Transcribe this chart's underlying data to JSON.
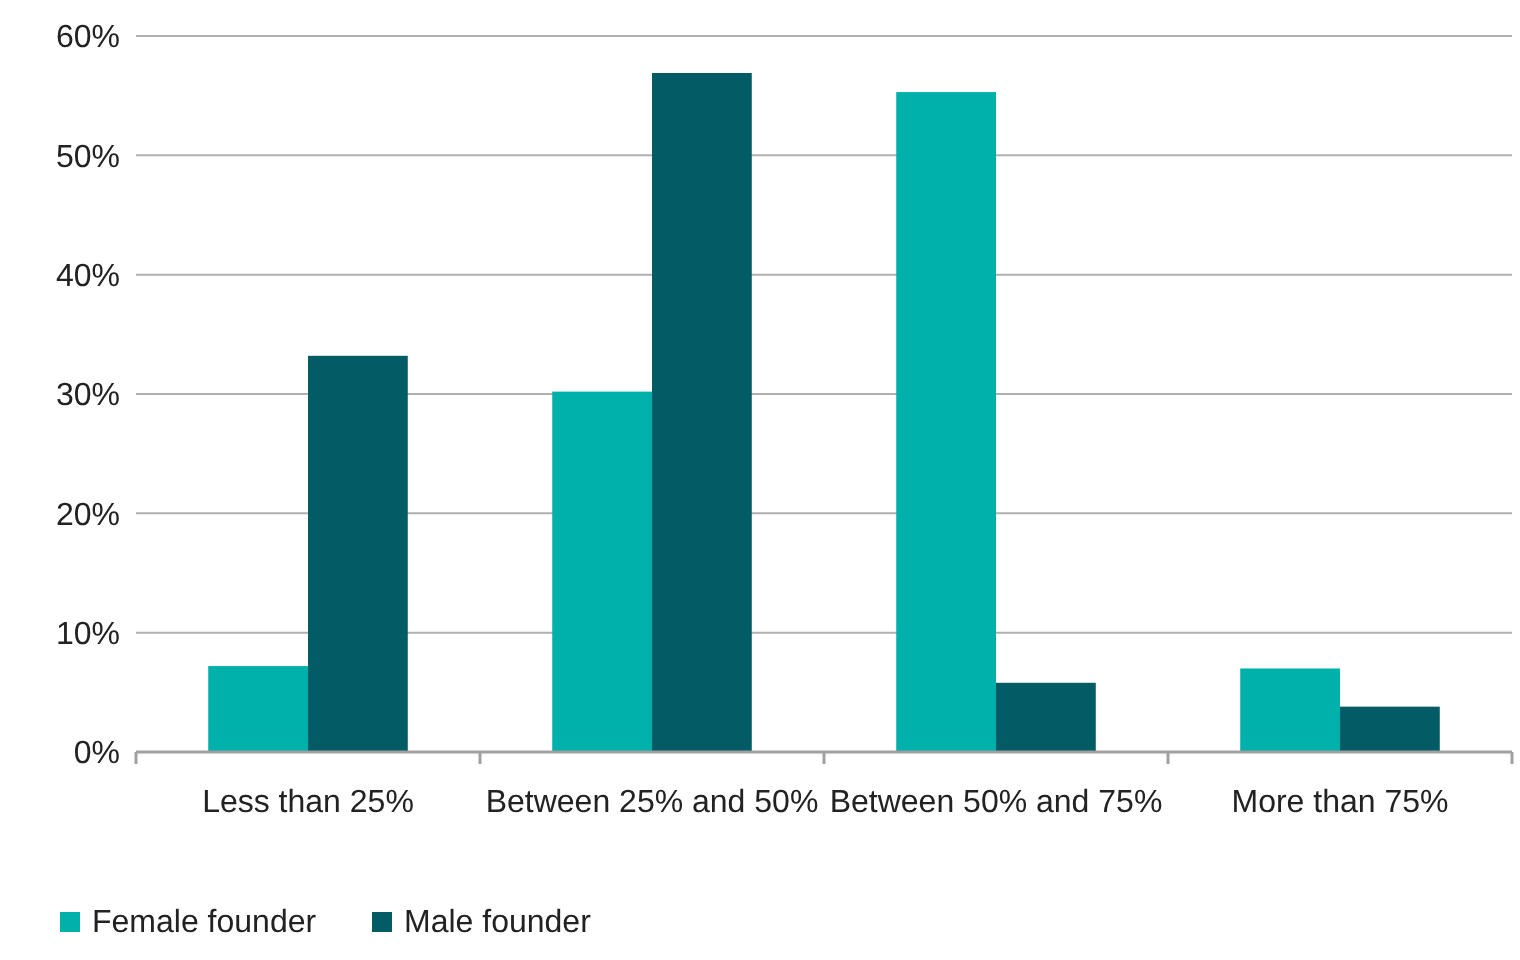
{
  "chart_data": {
    "type": "bar",
    "categories": [
      "Less than 25%",
      "Between 25% and 50%",
      "Between 50% and 75%",
      "More than 75%"
    ],
    "series": [
      {
        "name": "Female founder",
        "color": "#00b0aa",
        "values": [
          7.2,
          30.2,
          55.3,
          7.0
        ]
      },
      {
        "name": "Male founder",
        "color": "#025b65",
        "values": [
          33.2,
          56.9,
          5.8,
          3.8
        ]
      }
    ],
    "ylim": [
      0,
      60
    ],
    "yticks": [
      {
        "value": 0,
        "label": "0%"
      },
      {
        "value": 10,
        "label": "10%"
      },
      {
        "value": 20,
        "label": "20%"
      },
      {
        "value": 30,
        "label": "30%"
      },
      {
        "value": 40,
        "label": "40%"
      },
      {
        "value": 50,
        "label": "50%"
      },
      {
        "value": 60,
        "label": "60%"
      }
    ],
    "grid": "y",
    "legend": "bottom left"
  }
}
